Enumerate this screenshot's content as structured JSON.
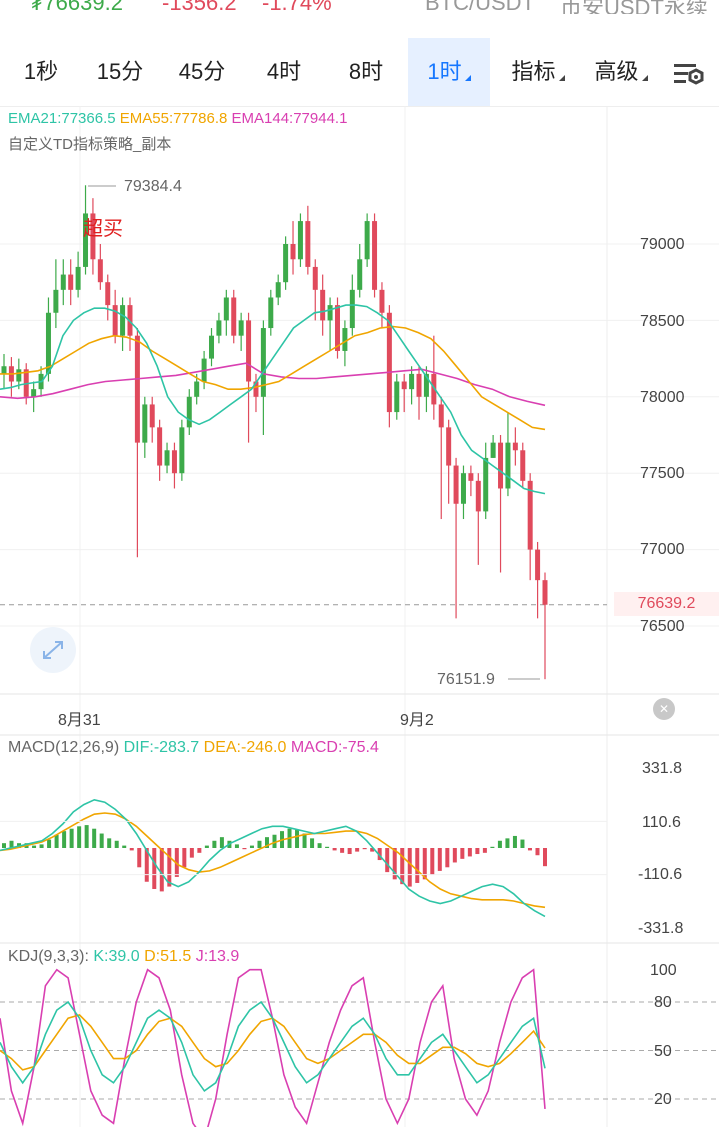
{
  "ticker": {
    "price": "₮76639.2",
    "change": "-1356.2",
    "change_pct": "-1.74%",
    "pair": "BTC/USDT",
    "exchange": "币安USDT永续",
    "up_color": "#3daa4a",
    "down_color": "#e04a5c"
  },
  "tabs": [
    {
      "label": "1秒",
      "active": false,
      "dropdown": false
    },
    {
      "label": "15分",
      "active": false,
      "dropdown": false
    },
    {
      "label": "45分",
      "active": false,
      "dropdown": false
    },
    {
      "label": "4时",
      "active": false,
      "dropdown": false
    },
    {
      "label": "8时",
      "active": false,
      "dropdown": false
    },
    {
      "label": "1时",
      "active": true,
      "dropdown": true
    },
    {
      "label": "指标",
      "active": false,
      "dropdown": true
    },
    {
      "label": "高级",
      "active": false,
      "dropdown": true
    }
  ],
  "settings_icon": "chart-settings-icon",
  "main": {
    "ema21": "EMA21:77366.5",
    "ema55": "EMA55:77786.8",
    "ema144": "EMA144:77944.1",
    "strategy": "自定义TD指标策略_副本",
    "high_label": "79384.4",
    "low_label": "76151.9",
    "signal": "超买",
    "price_ticks": [
      "79000",
      "78500",
      "78000",
      "77500",
      "77000",
      "76500"
    ],
    "current_price": "76639.2",
    "dates": [
      "8月31",
      "9月2"
    ],
    "ema21_color": "#2ec4a6",
    "ema55_color": "#f0a500",
    "ema144_color": "#d93fb1"
  },
  "macd": {
    "title": "MACD(12,26,9)",
    "dif": "DIF:-283.7",
    "dea": "DEA:-246.0",
    "macd": "MACD:-75.4",
    "ticks": [
      "331.8",
      "110.6",
      "-110.6",
      "-331.8"
    ]
  },
  "kdj": {
    "title": "KDJ(9,3,3):",
    "k": "K:39.0",
    "d": "D:51.5",
    "j": "J:13.9",
    "ticks": [
      "100",
      "80",
      "50",
      "20"
    ]
  },
  "chart_data": {
    "type": "candlestick",
    "price_range": [
      76151.9,
      79384.4
    ],
    "candles": [
      [
        78150,
        78200,
        78280,
        78050
      ],
      [
        78200,
        78100,
        78260,
        78000
      ],
      [
        78100,
        78180,
        78250,
        78050
      ],
      [
        78180,
        78000,
        78220,
        77950
      ],
      [
        78000,
        78050,
        78100,
        77900
      ],
      [
        78050,
        78150,
        78200,
        78000
      ],
      [
        78150,
        78550,
        78650,
        78100
      ],
      [
        78550,
        78700,
        78900,
        78450
      ],
      [
        78700,
        78800,
        78900,
        78600
      ],
      [
        78800,
        78700,
        78900,
        78600
      ],
      [
        78700,
        78850,
        78950,
        78650
      ],
      [
        78850,
        79200,
        79384.4,
        78800
      ],
      [
        79200,
        78900,
        79300,
        78800
      ],
      [
        78900,
        78750,
        79000,
        78700
      ],
      [
        78750,
        78600,
        78800,
        78500
      ],
      [
        78600,
        78400,
        78700,
        78350
      ],
      [
        78400,
        78600,
        78650,
        78300
      ],
      [
        78600,
        78400,
        78650,
        78300
      ],
      [
        78400,
        77700,
        78450,
        76950
      ],
      [
        77700,
        77950,
        78000,
        77600
      ],
      [
        77950,
        77800,
        78000,
        77700
      ],
      [
        77800,
        77550,
        77850,
        77450
      ],
      [
        77550,
        77650,
        77700,
        77500
      ],
      [
        77650,
        77500,
        77700,
        77400
      ],
      [
        77500,
        77800,
        77850,
        77450
      ],
      [
        77800,
        78000,
        78050,
        77750
      ],
      [
        78000,
        78100,
        78150,
        77950
      ],
      [
        78100,
        78250,
        78300,
        78050
      ],
      [
        78250,
        78400,
        78450,
        78200
      ],
      [
        78400,
        78500,
        78550,
        78350
      ],
      [
        78500,
        78650,
        78700,
        78400
      ],
      [
        78650,
        78400,
        78700,
        78350
      ],
      [
        78400,
        78500,
        78550,
        78300
      ],
      [
        78500,
        78100,
        78550,
        77700
      ],
      [
        78100,
        78000,
        78150,
        77900
      ],
      [
        78000,
        78450,
        78500,
        77750
      ],
      [
        78450,
        78650,
        78700,
        78400
      ],
      [
        78650,
        78750,
        78800,
        78600
      ],
      [
        78750,
        79000,
        79050,
        78700
      ],
      [
        79000,
        78900,
        79150,
        78800
      ],
      [
        78900,
        79150,
        79200,
        78850
      ],
      [
        79150,
        78850,
        79250,
        78800
      ],
      [
        78850,
        78700,
        78900,
        78500
      ],
      [
        78700,
        78500,
        78800,
        78400
      ],
      [
        78500,
        78600,
        78650,
        78300
      ],
      [
        78600,
        78300,
        78650,
        78250
      ],
      [
        78300,
        78450,
        78500,
        78200
      ],
      [
        78450,
        78700,
        78800,
        78400
      ],
      [
        78700,
        78900,
        79000,
        78650
      ],
      [
        78900,
        79150,
        79200,
        78850
      ],
      [
        79150,
        78700,
        79200,
        78650
      ],
      [
        78700,
        78550,
        78750,
        78450
      ],
      [
        78550,
        77900,
        78600,
        77800
      ],
      [
        77900,
        78100,
        78150,
        77850
      ],
      [
        78100,
        78050,
        78150,
        77900
      ],
      [
        78050,
        78150,
        78200,
        77950
      ],
      [
        78150,
        78000,
        78200,
        77850
      ],
      [
        78000,
        78150,
        78200,
        77900
      ],
      [
        78150,
        77950,
        78400,
        77850
      ],
      [
        77950,
        77800,
        78000,
        77200
      ],
      [
        77800,
        77550,
        77850,
        77300
      ],
      [
        77550,
        77300,
        77600,
        76550
      ],
      [
        77300,
        77500,
        77550,
        77200
      ],
      [
        77500,
        77450,
        77550,
        77350
      ],
      [
        77450,
        77250,
        77500,
        76900
      ],
      [
        77250,
        77600,
        77700,
        77200
      ],
      [
        77600,
        77700,
        77750,
        77600
      ],
      [
        77700,
        77400,
        77750,
        76850
      ],
      [
        77400,
        77700,
        77900,
        77350
      ],
      [
        77700,
        77650,
        77800,
        77550
      ],
      [
        77650,
        77450,
        77700,
        77400
      ],
      [
        77450,
        77000,
        77500,
        76800
      ],
      [
        77000,
        76800,
        77050,
        76550
      ],
      [
        76800,
        76639.2,
        76850,
        76151.9
      ]
    ],
    "ema21": [
      78050,
      78060,
      78080,
      78090,
      78100,
      78200,
      78400,
      78500,
      78550,
      78580,
      78580,
      78560,
      78520,
      78450,
      78350,
      78200,
      78000,
      77900,
      77850,
      77820,
      77850,
      77900,
      77950,
      78000,
      78050,
      78150,
      78250,
      78350,
      78450,
      78500,
      78550,
      78560,
      78580,
      78600,
      78600,
      78590,
      78550,
      78500,
      78400,
      78300,
      78200,
      78100,
      78000,
      77900,
      77750,
      77650,
      77600,
      77550,
      77500,
      77450,
      77400,
      77380,
      77366.5
    ],
    "ema55": [
      78150,
      78150,
      78160,
      78170,
      78200,
      78250,
      78300,
      78350,
      78380,
      78400,
      78390,
      78360,
      78300,
      78250,
      78200,
      78150,
      78100,
      78080,
      78050,
      78050,
      78060,
      78080,
      78100,
      78150,
      78200,
      78250,
      78300,
      78350,
      78400,
      78420,
      78450,
      78460,
      78450,
      78420,
      78380,
      78300,
      78200,
      78100,
      78000,
      77950,
      77900,
      77850,
      77800,
      77786.8
    ],
    "ema144": [
      78000,
      77990,
      78000,
      78020,
      78050,
      78080,
      78100,
      78110,
      78120,
      78130,
      78140,
      78160,
      78180,
      78200,
      78220,
      78150,
      78130,
      78120,
      78120,
      78130,
      78140,
      78150,
      78160,
      78170,
      78180,
      78150,
      78120,
      78080,
      78050,
      78000,
      77970,
      77944.1
    ]
  }
}
